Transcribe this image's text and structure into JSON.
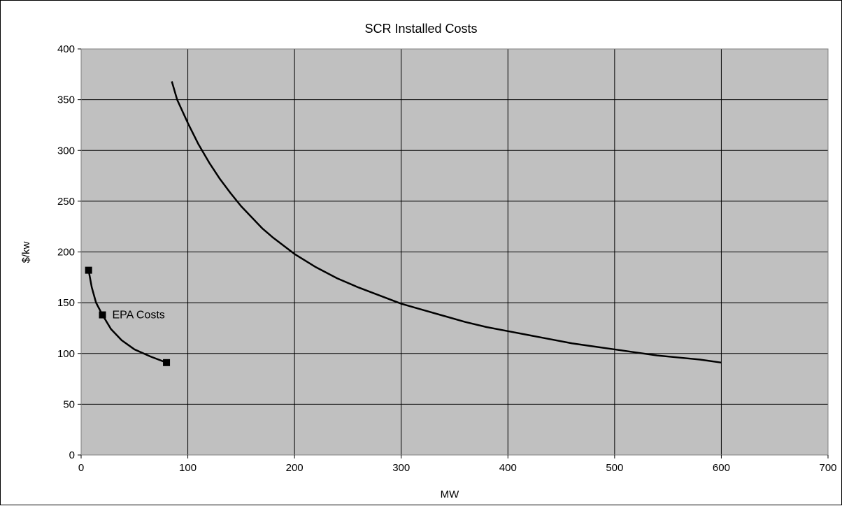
{
  "chart_data": {
    "type": "line",
    "title": "SCR Installed Costs",
    "xlabel": "MW",
    "ylabel": "$/kw",
    "xlim": [
      0,
      700
    ],
    "ylim": [
      0,
      400
    ],
    "xticks": [
      0,
      100,
      200,
      300,
      400,
      500,
      600,
      700
    ],
    "yticks": [
      0,
      50,
      100,
      150,
      200,
      250,
      300,
      350,
      400
    ],
    "grid": true,
    "plot_background": "#c0c0c0",
    "series": [
      {
        "name": "",
        "color": "#000000",
        "markers": false,
        "x": [
          85,
          90,
          100,
          110,
          120,
          130,
          140,
          150,
          160,
          170,
          180,
          190,
          200,
          220,
          240,
          260,
          280,
          300,
          320,
          340,
          360,
          380,
          400,
          420,
          440,
          460,
          480,
          500,
          520,
          540,
          560,
          580,
          600
        ],
        "y": [
          368,
          350,
          327,
          306,
          288,
          272,
          258,
          245,
          234,
          223,
          214,
          206,
          198,
          185,
          174,
          165,
          157,
          149,
          143,
          137,
          131,
          126,
          122,
          118,
          114,
          110,
          107,
          104,
          101,
          98,
          96,
          94,
          91
        ]
      },
      {
        "name": "EPA Costs",
        "color": "#000000",
        "markers": true,
        "x": [
          7,
          20,
          80
        ],
        "y": [
          182,
          138,
          91
        ],
        "curve_x": [
          7,
          10,
          14,
          20,
          28,
          38,
          50,
          65,
          80
        ],
        "curve_y": [
          182,
          165,
          150,
          138,
          124,
          113,
          104,
          97,
          91
        ]
      }
    ],
    "annotations": [
      {
        "text": "EPA Costs",
        "x": 20,
        "y": 138
      }
    ]
  }
}
